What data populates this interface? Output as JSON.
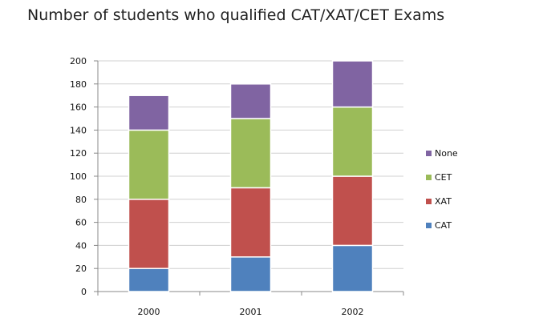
{
  "chart_data": {
    "type": "bar",
    "stacked": true,
    "title": "Number of students who qualified CAT/XAT/CET Exams",
    "xlabel": "",
    "ylabel": "",
    "categories": [
      "2000",
      "2001",
      "2002"
    ],
    "series": [
      {
        "name": "CAT",
        "color": "#4f81bd",
        "values": [
          20,
          30,
          40
        ]
      },
      {
        "name": "XAT",
        "color": "#c0504d",
        "values": [
          60,
          60,
          60
        ]
      },
      {
        "name": "CET",
        "color": "#9bbb59",
        "values": [
          60,
          60,
          60
        ]
      },
      {
        "name": "None",
        "color": "#8064a2",
        "values": [
          30,
          30,
          40
        ]
      }
    ],
    "ylim": [
      0,
      200
    ],
    "yticks": [
      0,
      20,
      40,
      60,
      80,
      100,
      120,
      140,
      160,
      180,
      200
    ],
    "grid": true,
    "legend": "right",
    "legend_order": [
      "None",
      "CET",
      "XAT",
      "CAT"
    ]
  }
}
